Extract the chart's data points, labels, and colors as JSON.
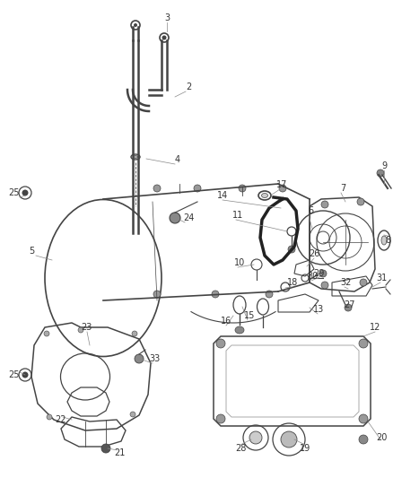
{
  "bg_color": "#ffffff",
  "line_color": "#444444",
  "label_color": "#333333",
  "fig_width": 4.38,
  "fig_height": 5.33,
  "dpi": 100
}
